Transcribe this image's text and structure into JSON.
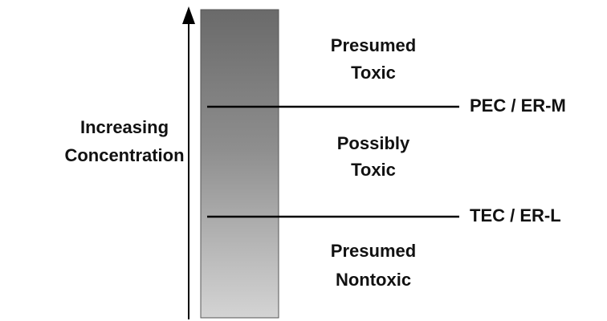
{
  "axis_label": [
    "Increasing",
    "Concentration"
  ],
  "zones": [
    {
      "lines": [
        "Presumed",
        "Toxic"
      ]
    },
    {
      "lines": [
        "Possibly",
        "Toxic"
      ]
    },
    {
      "lines": [
        "Presumed",
        "Nontoxic"
      ]
    }
  ],
  "thresholds": [
    {
      "label": "PEC / ER-M"
    },
    {
      "label": "TEC / ER-L"
    }
  ]
}
